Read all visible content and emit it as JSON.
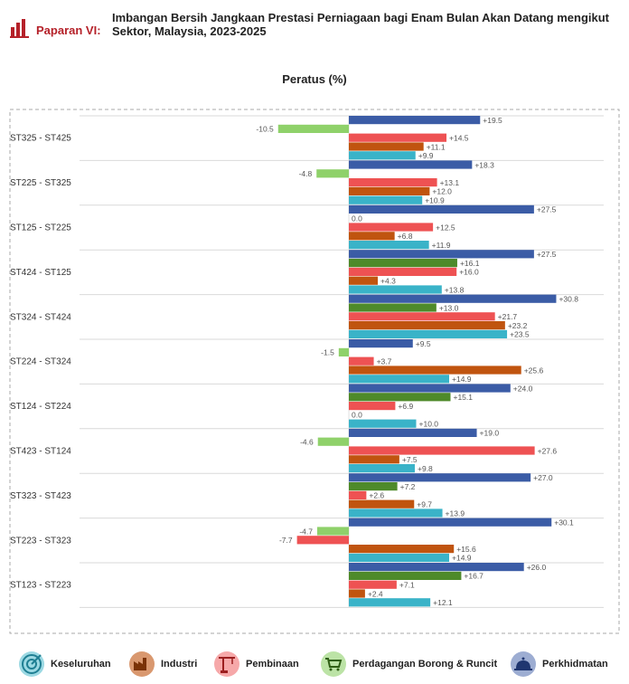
{
  "header": {
    "label": "Paparan VI:",
    "title_line1": "Imbangan Bersih Jangkaan Prestasi Perniagaan bagi Enam Bulan Akan Datang mengikut",
    "title_line2": "Sektor, Malaysia, 2023-2025",
    "icon": "bar-chart-icon"
  },
  "chart_data": {
    "type": "bar",
    "orientation": "horizontal",
    "title": "Imbangan Bersih Jangkaan Prestasi Perniagaan bagi Enam Bulan Akan Datang mengikut Sektor, Malaysia, 2023-2025",
    "xlabel": "Peratus (%)",
    "ylabel": "",
    "grid": true,
    "legend_position": "bottom",
    "categories": [
      "ST325 - ST425",
      "ST225 - ST325",
      "ST125 - ST225",
      "ST424 - ST125",
      "ST324 - ST424",
      "ST224 - ST324",
      "ST124 - ST224",
      "ST423 - ST124",
      "ST323 - ST423",
      "ST223 - ST323",
      "ST123 - ST223"
    ],
    "series": [
      {
        "name": "Perkhidmatan",
        "color": "#3b5ca6",
        "values": [
          19.5,
          18.3,
          27.5,
          27.5,
          30.8,
          9.5,
          24.0,
          19.0,
          27.0,
          30.1,
          26.0
        ]
      },
      {
        "name": "Perdagangan Borong & Runcit",
        "color": "#8fd16a",
        "values": [
          -10.5,
          -4.8,
          0.0,
          16.1,
          13.0,
          -1.5,
          15.1,
          -4.6,
          7.2,
          -4.7,
          16.7
        ]
      },
      {
        "name": "Pembinaan",
        "color": "#ee5253",
        "values": [
          14.5,
          13.1,
          12.5,
          16.0,
          21.7,
          3.7,
          6.9,
          27.6,
          2.6,
          -7.7,
          7.1
        ]
      },
      {
        "name": "Industri",
        "color": "#c0540f",
        "values": [
          11.1,
          12.0,
          6.8,
          4.3,
          23.2,
          25.6,
          0.0,
          7.5,
          9.7,
          15.6,
          2.4
        ]
      },
      {
        "name": "Keseluruhan",
        "color": "#3ab3c8",
        "values": [
          9.9,
          10.9,
          11.9,
          13.8,
          23.5,
          14.9,
          10.0,
          9.8,
          13.9,
          14.9,
          12.1
        ]
      }
    ],
    "bar_labels": {
      "Perkhidmatan": [
        "+19.5",
        "+18.3",
        "+27.5",
        "+27.5",
        "+30.8",
        "+9.5",
        "+24.0",
        "+19.0",
        "+27.0",
        "+30.1",
        "+26.0"
      ],
      "Perdagangan Borong & Runcit": [
        "-10.5",
        "-4.8",
        "0.0",
        "+16.1",
        "+13.0",
        "-1.5",
        "+15.1",
        "-4.6",
        "+7.2",
        "-4.7",
        "+16.7"
      ],
      "Pembinaan": [
        "+14.5",
        "+13.1",
        "+12.5",
        "+16.0",
        "+21.7",
        "+3.7",
        "+6.9",
        "+27.6",
        "+2.6",
        "-7.7",
        "+7.1"
      ],
      "Industri": [
        "+11.1",
        "+12.0",
        "+6.8",
        "+4.3",
        "+23.2",
        "+25.6",
        "0.0",
        "+7.5",
        "+9.7",
        "+15.6",
        "+2.4"
      ],
      "Keseluruhan": [
        "+9.9",
        "+10.9",
        "+11.9",
        "+13.8",
        "+23.5",
        "+14.9",
        "+10.0",
        "+9.8",
        "+13.9",
        "+14.9",
        "+12.1"
      ]
    },
    "green_override_color": "#4e8a2a"
  },
  "legend": [
    {
      "label": "Keseluruhan",
      "color": "#3ab3c8",
      "icon": "target-icon"
    },
    {
      "label": "Industri",
      "color": "#c0540f",
      "icon": "factory-icon"
    },
    {
      "label": "Pembinaan",
      "color": "#ee5253",
      "icon": "crane-icon"
    },
    {
      "label": "Perdagangan Borong & Runcit",
      "color": "#8fd16a",
      "icon": "shopping-cart-icon"
    },
    {
      "label": "Perkhidmatan",
      "color": "#3b5ca6",
      "icon": "service-bell-icon"
    }
  ]
}
